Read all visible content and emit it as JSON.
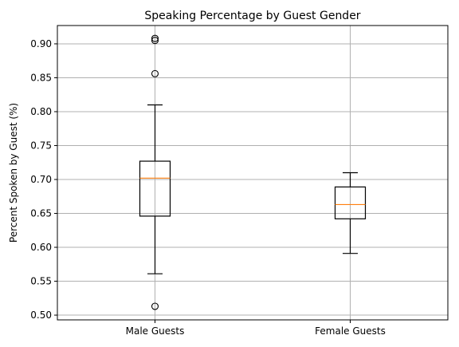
{
  "chart_data": {
    "type": "boxplot",
    "title": "Speaking Percentage by Guest Gender",
    "xlabel": "",
    "ylabel": "Percent Spoken by Guest (%)",
    "ylim": [
      0.493,
      0.927
    ],
    "yticks": [
      0.5,
      0.55,
      0.6,
      0.65,
      0.7,
      0.75,
      0.8,
      0.85,
      0.9
    ],
    "ytick_labels": [
      "0.50",
      "0.55",
      "0.60",
      "0.65",
      "0.70",
      "0.75",
      "0.80",
      "0.85",
      "0.90"
    ],
    "grid": true,
    "categories": [
      "Male Guests",
      "Female Guests"
    ],
    "boxes": [
      {
        "category": "Male Guests",
        "whisker_low": 0.561,
        "q1": 0.646,
        "median": 0.702,
        "q3": 0.727,
        "whisker_high": 0.81,
        "outliers": [
          0.908,
          0.905,
          0.856,
          0.513
        ]
      },
      {
        "category": "Female Guests",
        "whisker_low": 0.591,
        "q1": 0.642,
        "median": 0.663,
        "q3": 0.689,
        "whisker_high": 0.71,
        "outliers": []
      }
    ],
    "colors": {
      "box": "#000000",
      "median": "#ff7f0e",
      "grid": "#b0b0b0"
    }
  }
}
